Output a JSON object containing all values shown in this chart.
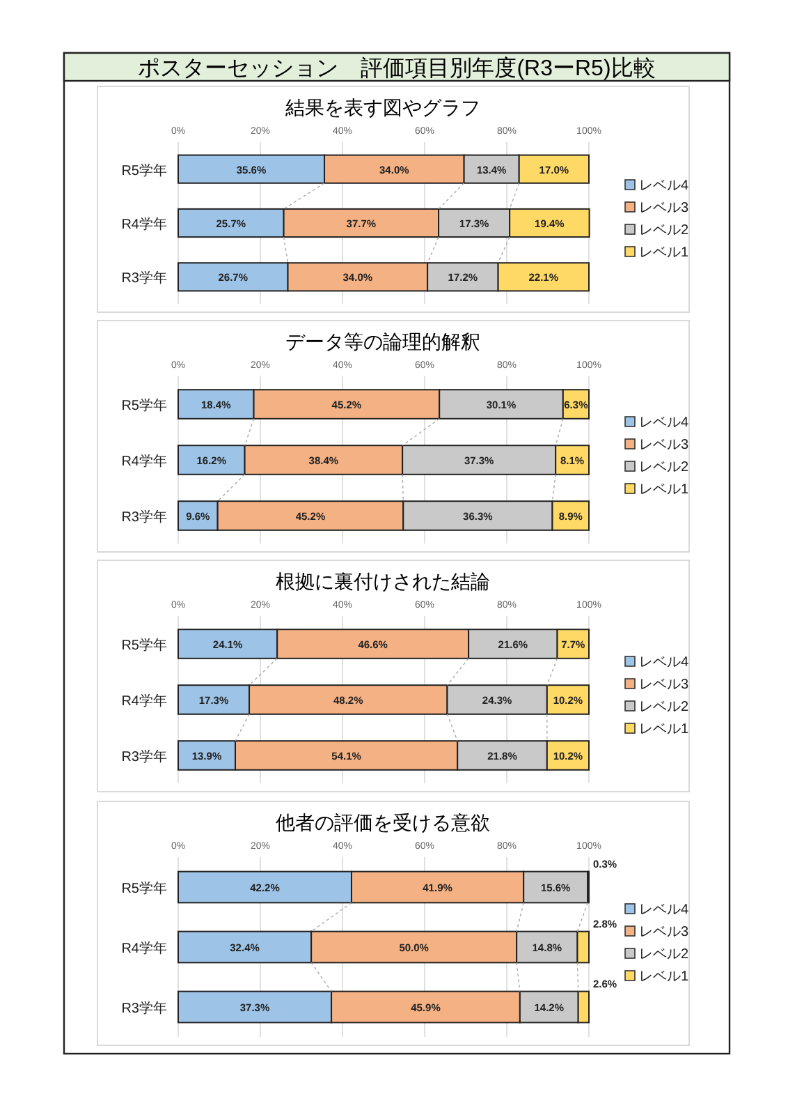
{
  "chart_data": [
    {
      "type": "other",
      "title": "ポスターセッション　評価項目別年度(R3ーR5)比較"
    },
    {
      "type": "bar",
      "orientation": "horizontal",
      "stacked": true,
      "title": "結果を表す図やグラフ",
      "categories": [
        "R5学年",
        "R4学年",
        "R3学年"
      ],
      "xlim": [
        0,
        100
      ],
      "xticks": [
        {
          "value": 0,
          "label": "0%"
        },
        {
          "value": 20,
          "label": "20%"
        },
        {
          "value": 40,
          "label": "40%"
        },
        {
          "value": 60,
          "label": "60%"
        },
        {
          "value": 80,
          "label": "80%"
        },
        {
          "value": 100,
          "label": "100%"
        }
      ],
      "grid": "x",
      "legend": "right",
      "data_labels": true,
      "series": [
        {
          "name": "レベル4",
          "color": "#9dc3e6",
          "values": [
            35.6,
            25.7,
            26.7
          ],
          "value_labels": [
            "35.6%",
            "25.7%",
            "26.7%"
          ]
        },
        {
          "name": "レベル3",
          "color": "#f4b183",
          "values": [
            34.0,
            37.7,
            34.0
          ],
          "value_labels": [
            "34.0%",
            "37.7%",
            "34.0%"
          ]
        },
        {
          "name": "レベル2",
          "color": "#c9c9c9",
          "values": [
            13.4,
            17.3,
            17.2
          ],
          "value_labels": [
            "13.4%",
            "17.3%",
            "17.2%"
          ]
        },
        {
          "name": "レベル1",
          "color": "#ffd966",
          "values": [
            17.0,
            19.4,
            22.1
          ],
          "value_labels": [
            "17.0%",
            "19.4%",
            "22.1%"
          ]
        }
      ]
    },
    {
      "type": "bar",
      "orientation": "horizontal",
      "stacked": true,
      "title": "データ等の論理的解釈",
      "categories": [
        "R5学年",
        "R4学年",
        "R3学年"
      ],
      "xlim": [
        0,
        100
      ],
      "xticks": [
        {
          "value": 0,
          "label": "0%"
        },
        {
          "value": 20,
          "label": "20%"
        },
        {
          "value": 40,
          "label": "40%"
        },
        {
          "value": 60,
          "label": "60%"
        },
        {
          "value": 80,
          "label": "80%"
        },
        {
          "value": 100,
          "label": "100%"
        }
      ],
      "grid": "x",
      "legend": "right",
      "data_labels": true,
      "series": [
        {
          "name": "レベル4",
          "color": "#9dc3e6",
          "values": [
            18.4,
            16.2,
            9.6
          ],
          "value_labels": [
            "18.4%",
            "16.2%",
            "9.6%"
          ]
        },
        {
          "name": "レベル3",
          "color": "#f4b183",
          "values": [
            45.2,
            38.4,
            45.2
          ],
          "value_labels": [
            "45.2%",
            "38.4%",
            "45.2%"
          ]
        },
        {
          "name": "レベル2",
          "color": "#c9c9c9",
          "values": [
            30.1,
            37.3,
            36.3
          ],
          "value_labels": [
            "30.1%",
            "37.3%",
            "36.3%"
          ]
        },
        {
          "name": "レベル1",
          "color": "#ffd966",
          "values": [
            6.3,
            8.1,
            8.9
          ],
          "value_labels": [
            "6.3%",
            "8.1%",
            "8.9%"
          ]
        }
      ]
    },
    {
      "type": "bar",
      "orientation": "horizontal",
      "stacked": true,
      "title": "根拠に裏付けされた結論",
      "categories": [
        "R5学年",
        "R4学年",
        "R3学年"
      ],
      "xlim": [
        0,
        100
      ],
      "xticks": [
        {
          "value": 0,
          "label": "0%"
        },
        {
          "value": 20,
          "label": "20%"
        },
        {
          "value": 40,
          "label": "40%"
        },
        {
          "value": 60,
          "label": "60%"
        },
        {
          "value": 80,
          "label": "80%"
        },
        {
          "value": 100,
          "label": "100%"
        }
      ],
      "grid": "x",
      "legend": "right",
      "data_labels": true,
      "series": [
        {
          "name": "レベル4",
          "color": "#9dc3e6",
          "values": [
            24.1,
            17.3,
            13.9
          ],
          "value_labels": [
            "24.1%",
            "17.3%",
            "13.9%"
          ]
        },
        {
          "name": "レベル3",
          "color": "#f4b183",
          "values": [
            46.6,
            48.2,
            54.1
          ],
          "value_labels": [
            "46.6%",
            "48.2%",
            "54.1%"
          ]
        },
        {
          "name": "レベル2",
          "color": "#c9c9c9",
          "values": [
            21.6,
            24.3,
            21.8
          ],
          "value_labels": [
            "21.6%",
            "24.3%",
            "21.8%"
          ]
        },
        {
          "name": "レベル1",
          "color": "#ffd966",
          "values": [
            7.7,
            10.2,
            10.2
          ],
          "value_labels": [
            "7.7%",
            "10.2%",
            "10.2%"
          ]
        }
      ]
    },
    {
      "type": "bar",
      "orientation": "horizontal",
      "stacked": true,
      "title": "他者の評価を受ける意欲",
      "categories": [
        "R5学年",
        "R4学年",
        "R3学年"
      ],
      "xlim": [
        0,
        100
      ],
      "xticks": [
        {
          "value": 0,
          "label": "0%"
        },
        {
          "value": 20,
          "label": "20%"
        },
        {
          "value": 40,
          "label": "40%"
        },
        {
          "value": 60,
          "label": "60%"
        },
        {
          "value": 80,
          "label": "80%"
        },
        {
          "value": 100,
          "label": "100%"
        }
      ],
      "grid": "x",
      "legend": "right",
      "data_labels": true,
      "series": [
        {
          "name": "レベル4",
          "color": "#9dc3e6",
          "values": [
            42.2,
            32.4,
            37.3
          ],
          "value_labels": [
            "42.2%",
            "32.4%",
            "37.3%"
          ]
        },
        {
          "name": "レベル3",
          "color": "#f4b183",
          "values": [
            41.9,
            50.0,
            45.9
          ],
          "value_labels": [
            "41.9%",
            "50.0%",
            "45.9%"
          ]
        },
        {
          "name": "レベル2",
          "color": "#c9c9c9",
          "values": [
            15.6,
            14.8,
            14.2
          ],
          "value_labels": [
            "15.6%",
            "14.8%",
            "14.2%"
          ]
        },
        {
          "name": "レベル1",
          "color": "#ffd966",
          "values": [
            0.3,
            2.8,
            2.6
          ],
          "value_labels": [
            "0.3%",
            "2.8%",
            "2.6%"
          ]
        }
      ]
    }
  ]
}
